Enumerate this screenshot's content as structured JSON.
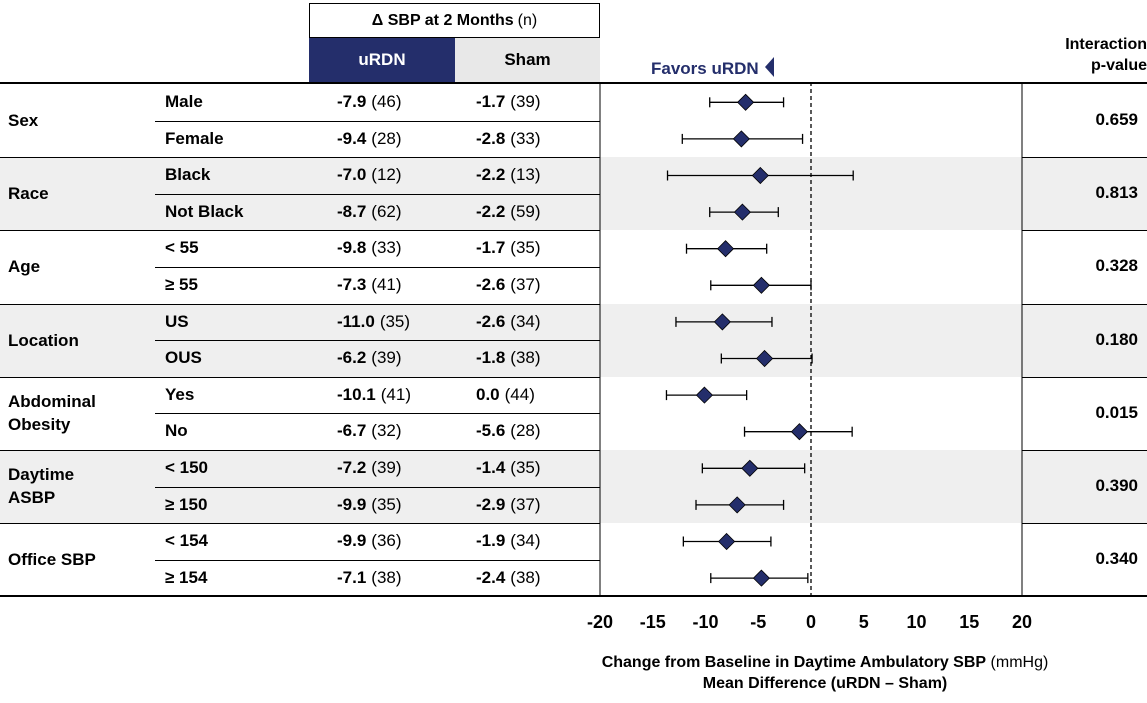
{
  "header": {
    "col_group_bold": "Δ SBP at 2 Months",
    "col_group_rest": "(n)",
    "urdn_label": "uRDN",
    "sham_label": "Sham",
    "favors_label": "Favors uRDN",
    "interaction_line1": "Interaction",
    "interaction_line2": "p-value"
  },
  "groups": [
    {
      "label": "Sex",
      "pvalue": "0.659",
      "rows": [
        {
          "sub": "Male",
          "urdn_val": "-7.9",
          "urdn_n": "(46)",
          "sham_val": "-1.7",
          "sham_n": "(39)"
        },
        {
          "sub": "Female",
          "urdn_val": "-9.4",
          "urdn_n": "(28)",
          "sham_val": "-2.8",
          "sham_n": "(33)"
        }
      ]
    },
    {
      "label": "Race",
      "pvalue": "0.813",
      "rows": [
        {
          "sub": "Black",
          "urdn_val": "-7.0",
          "urdn_n": "(12)",
          "sham_val": "-2.2",
          "sham_n": "(13)"
        },
        {
          "sub": "Not Black",
          "urdn_val": "-8.7",
          "urdn_n": "(62)",
          "sham_val": "-2.2",
          "sham_n": "(59)"
        }
      ]
    },
    {
      "label": "Age",
      "pvalue": "0.328",
      "rows": [
        {
          "sub": "< 55",
          "urdn_val": "-9.8",
          "urdn_n": "(33)",
          "sham_val": "-1.7",
          "sham_n": "(35)"
        },
        {
          "sub": "≥ 55",
          "urdn_val": "-7.3",
          "urdn_n": "(41)",
          "sham_val": "-2.6",
          "sham_n": "(37)"
        }
      ]
    },
    {
      "label": "Location",
      "pvalue": "0.180",
      "rows": [
        {
          "sub": "US",
          "urdn_val": "-11.0",
          "urdn_n": "(35)",
          "sham_val": "-2.6",
          "sham_n": "(34)"
        },
        {
          "sub": "OUS",
          "urdn_val": "-6.2",
          "urdn_n": "(39)",
          "sham_val": "-1.8",
          "sham_n": "(38)"
        }
      ]
    },
    {
      "label": "Abdominal Obesity",
      "label_line1": "Abdominal",
      "label_line2": "Obesity",
      "pvalue": "0.015",
      "rows": [
        {
          "sub": "Yes",
          "urdn_val": "-10.1",
          "urdn_n": "(41)",
          "sham_val": "0.0",
          "sham_n": "(44)"
        },
        {
          "sub": "No",
          "urdn_val": "-6.7",
          "urdn_n": "(32)",
          "sham_val": "-5.6",
          "sham_n": "(28)"
        }
      ]
    },
    {
      "label": "Daytime ASBP",
      "label_line1": "Daytime",
      "label_line2": "ASBP",
      "pvalue": "0.390",
      "rows": [
        {
          "sub": "< 150",
          "urdn_val": "-7.2",
          "urdn_n": "(39)",
          "sham_val": "-1.4",
          "sham_n": "(35)"
        },
        {
          "sub": "≥ 150",
          "urdn_val": "-9.9",
          "urdn_n": "(35)",
          "sham_val": "-2.9",
          "sham_n": "(37)"
        }
      ]
    },
    {
      "label": "Office SBP",
      "pvalue": "0.340",
      "rows": [
        {
          "sub": "< 154",
          "urdn_val": "-9.9",
          "urdn_n": "(36)",
          "sham_val": "-1.9",
          "sham_n": "(34)"
        },
        {
          "sub": "≥ 154",
          "urdn_val": "-7.1",
          "urdn_n": "(38)",
          "sham_val": "-2.4",
          "sham_n": "(38)"
        }
      ]
    }
  ],
  "axis": {
    "xlabel_bold": "Change from Baseline in Daytime Ambulatory SBP",
    "xlabel_unit": "(mmHg)",
    "xlabel_line2": "Mean Difference (uRDN – Sham)"
  },
  "colors": {
    "accent": "#242e6b",
    "shade": "#efefef",
    "sham_header": "#e8e8e8"
  },
  "chart_data": {
    "type": "forest",
    "x_ticks": [
      -20,
      -15,
      -10,
      -5,
      0,
      5,
      10,
      15,
      20
    ],
    "xlim": [
      -20,
      20
    ],
    "reference_line": 0,
    "points": [
      {
        "group": "Sex",
        "sub": "Male",
        "estimate": -6.2,
        "ci": [
          -9.6,
          -2.6
        ]
      },
      {
        "group": "Sex",
        "sub": "Female",
        "estimate": -6.6,
        "ci": [
          -12.2,
          -0.8
        ]
      },
      {
        "group": "Race",
        "sub": "Black",
        "estimate": -4.8,
        "ci": [
          -13.6,
          4.0
        ]
      },
      {
        "group": "Race",
        "sub": "Not Black",
        "estimate": -6.5,
        "ci": [
          -9.6,
          -3.1
        ]
      },
      {
        "group": "Age",
        "sub": "< 55",
        "estimate": -8.1,
        "ci": [
          -11.8,
          -4.2
        ]
      },
      {
        "group": "Age",
        "sub": "≥ 55",
        "estimate": -4.7,
        "ci": [
          -9.5,
          0.0
        ]
      },
      {
        "group": "Location",
        "sub": "US",
        "estimate": -8.4,
        "ci": [
          -12.8,
          -3.7
        ]
      },
      {
        "group": "Location",
        "sub": "OUS",
        "estimate": -4.4,
        "ci": [
          -8.5,
          0.1
        ]
      },
      {
        "group": "Abdominal Obesity",
        "sub": "Yes",
        "estimate": -10.1,
        "ci": [
          -13.7,
          -6.1
        ]
      },
      {
        "group": "Abdominal Obesity",
        "sub": "No",
        "estimate": -1.1,
        "ci": [
          -6.3,
          3.9
        ]
      },
      {
        "group": "Daytime ASBP",
        "sub": "< 150",
        "estimate": -5.8,
        "ci": [
          -10.3,
          -0.6
        ]
      },
      {
        "group": "Daytime ASBP",
        "sub": "≥ 150",
        "estimate": -7.0,
        "ci": [
          -10.9,
          -2.6
        ]
      },
      {
        "group": "Office SBP",
        "sub": "< 154",
        "estimate": -8.0,
        "ci": [
          -12.1,
          -3.8
        ]
      },
      {
        "group": "Office SBP",
        "sub": "≥ 154",
        "estimate": -4.7,
        "ci": [
          -9.5,
          -0.3
        ]
      }
    ]
  }
}
